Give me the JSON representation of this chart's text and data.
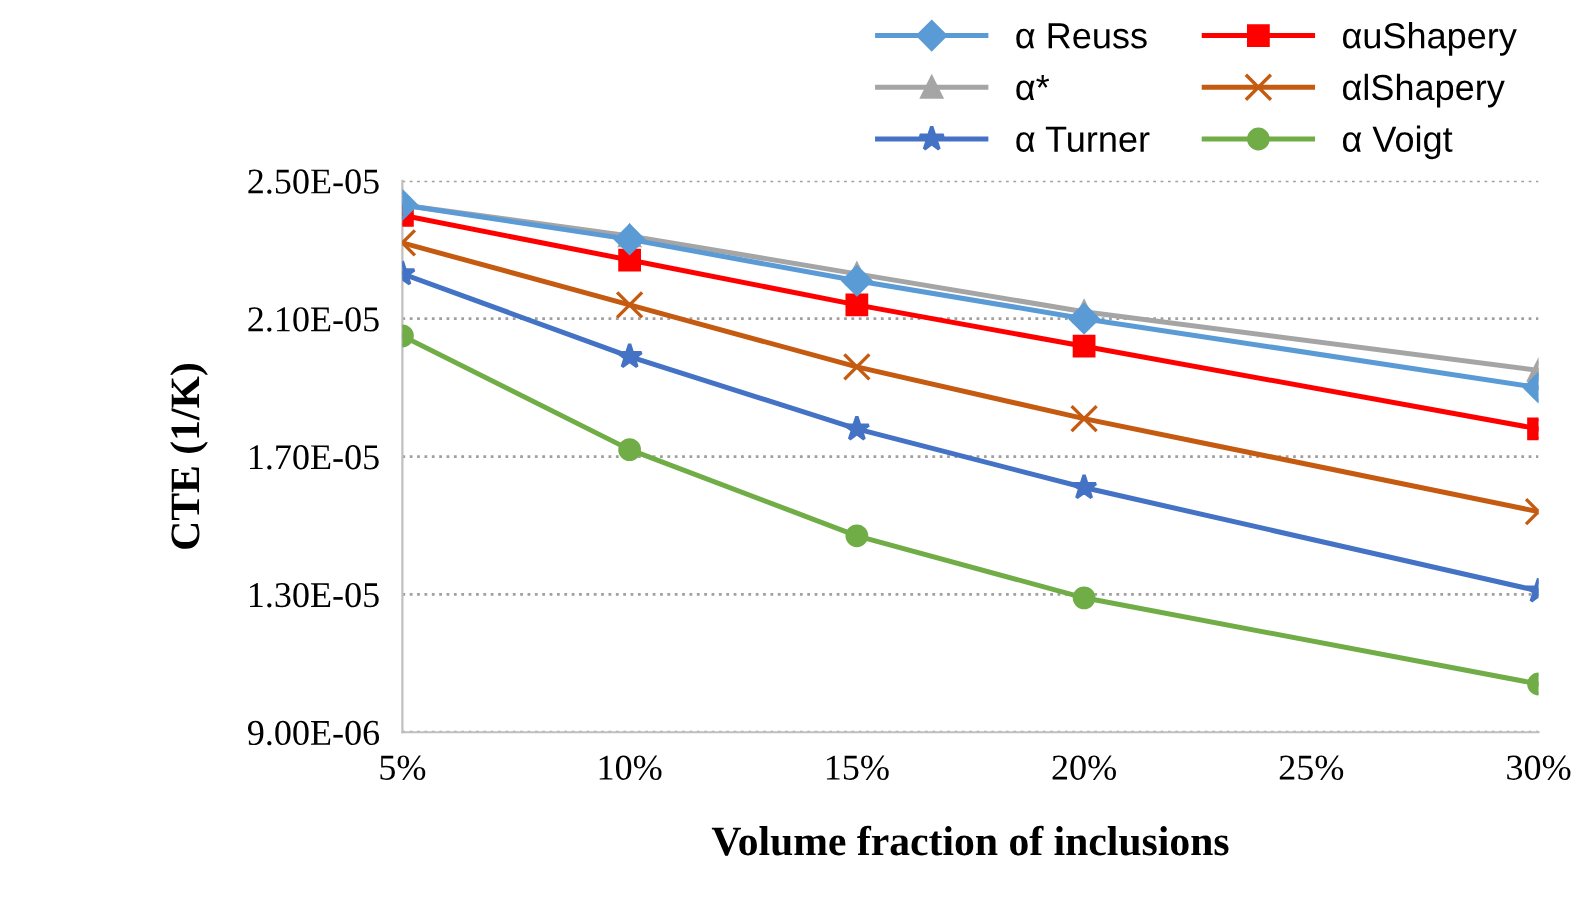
{
  "chart_data": {
    "type": "line",
    "xlabel": "Volume fraction of inclusions",
    "ylabel": "CTE (1/K)",
    "x": [
      5,
      10,
      15,
      20,
      30
    ],
    "xlim": [
      5,
      30
    ],
    "xticks": [
      {
        "value": 5,
        "label": "5%"
      },
      {
        "value": 10,
        "label": "10%"
      },
      {
        "value": 15,
        "label": "15%"
      },
      {
        "value": 20,
        "label": "20%"
      },
      {
        "value": 25,
        "label": "25%"
      },
      {
        "value": 30,
        "label": "30%"
      }
    ],
    "ylim": [
      9e-06,
      2.5e-05
    ],
    "yticks": [
      {
        "value": 9e-06,
        "label": "9.00E-06"
      },
      {
        "value": 1.3e-05,
        "label": "1.30E-05"
      },
      {
        "value": 1.7e-05,
        "label": "1.70E-05"
      },
      {
        "value": 2.1e-05,
        "label": "2.10E-05"
      },
      {
        "value": 2.5e-05,
        "label": "2.50E-05"
      }
    ],
    "grid": "y",
    "legend": "top right",
    "line_style": "solid",
    "series": [
      {
        "name": "α Reuss",
        "color": "#5b9bd5",
        "marker": "diamond",
        "values": [
          2.43e-05,
          2.33e-05,
          2.21e-05,
          2.1e-05,
          1.9e-05
        ]
      },
      {
        "name": "αuShapery",
        "color": "#ff0000",
        "marker": "square",
        "values": [
          2.4e-05,
          2.27e-05,
          2.14e-05,
          2.02e-05,
          1.78e-05
        ]
      },
      {
        "name": "α*",
        "color": "#a5a5a5",
        "marker": "triangle",
        "values": [
          2.43e-05,
          2.34e-05,
          2.23e-05,
          2.12e-05,
          1.95e-05
        ]
      },
      {
        "name": "αlShapery",
        "color": "#c55a11",
        "marker": "cross",
        "values": [
          2.32e-05,
          2.14e-05,
          1.96e-05,
          1.81e-05,
          1.54e-05
        ]
      },
      {
        "name": "α Turner",
        "color": "#4472c4",
        "marker": "star",
        "values": [
          2.23e-05,
          1.99e-05,
          1.78e-05,
          1.61e-05,
          1.31e-05
        ]
      },
      {
        "name": "α Voigt",
        "color": "#70ad47",
        "marker": "circle",
        "values": [
          2.05e-05,
          1.72e-05,
          1.47e-05,
          1.29e-05,
          1.04e-05
        ]
      }
    ]
  }
}
